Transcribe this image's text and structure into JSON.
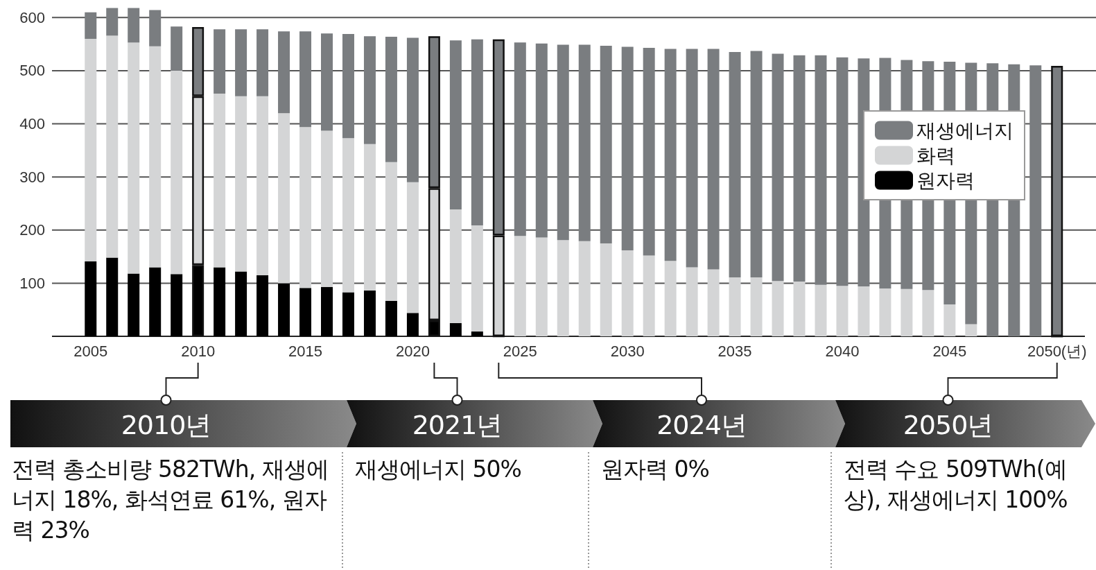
{
  "chart_data": {
    "type": "bar",
    "stacked": true,
    "x": [
      2005,
      2006,
      2007,
      2008,
      2009,
      2010,
      2011,
      2012,
      2013,
      2014,
      2015,
      2016,
      2017,
      2018,
      2019,
      2020,
      2021,
      2022,
      2023,
      2024,
      2025,
      2026,
      2027,
      2028,
      2029,
      2030,
      2031,
      2032,
      2033,
      2034,
      2035,
      2036,
      2037,
      2038,
      2039,
      2040,
      2041,
      2042,
      2043,
      2044,
      2045,
      2046,
      2047,
      2048,
      2049,
      2050
    ],
    "series": [
      {
        "name": "원자력",
        "color": "#000000",
        "values": [
          141,
          148,
          118,
          130,
          117,
          134,
          130,
          122,
          115,
          100,
          91,
          93,
          83,
          86,
          67,
          44,
          30,
          25,
          9,
          0,
          0,
          0,
          0,
          0,
          0,
          0,
          0,
          0,
          0,
          0,
          0,
          0,
          0,
          0,
          0,
          0,
          0,
          0,
          0,
          0,
          0,
          0,
          0,
          0,
          0,
          0
        ]
      },
      {
        "name": "화력",
        "color": "#d4d5d6",
        "values": [
          419,
          418,
          435,
          416,
          383,
          318,
          327,
          330,
          337,
          320,
          303,
          294,
          290,
          276,
          261,
          246,
          249,
          214,
          200,
          190,
          189,
          186,
          181,
          179,
          175,
          162,
          152,
          142,
          130,
          126,
          111,
          111,
          104,
          103,
          97,
          95,
          94,
          90,
          89,
          87,
          60,
          23,
          0,
          0,
          0,
          0
        ]
      },
      {
        "name": "재생에너지",
        "color": "#7a7d80",
        "values": [
          50,
          52,
          65,
          68,
          83,
          130,
          121,
          126,
          126,
          154,
          180,
          183,
          196,
          203,
          236,
          272,
          286,
          318,
          350,
          369,
          364,
          365,
          368,
          370,
          372,
          383,
          391,
          399,
          411,
          415,
          424,
          426,
          428,
          426,
          432,
          430,
          429,
          434,
          431,
          431,
          457,
          492,
          514,
          512,
          510,
          509
        ]
      }
    ],
    "xlim": [
      2003.2,
      2051.3
    ],
    "xticks": [
      2005,
      2010,
      2015,
      2020,
      2025,
      2030,
      2035,
      2040,
      2045,
      {
        "value": 2050,
        "label": "2050(년)"
      }
    ],
    "ylim": [
      0,
      620
    ],
    "yticks": [
      100,
      200,
      300,
      400,
      500,
      600
    ],
    "grid": "y",
    "legend": "right",
    "annotations": [
      {
        "text": "2010년",
        "x": 2010
      },
      {
        "text": "2021년",
        "x": 2021
      },
      {
        "text": "2024년",
        "x": 2024
      },
      {
        "text": "2050년",
        "x": 2050
      },
      "전력 총소비량 582TWh, 재생에너지 18%, 화석연료 61%, 원자력 23%",
      "재생에너지 50%",
      "원자력 0%",
      "전력 수요 509TWh(예상), 재생에너지 100%"
    ]
  }
}
